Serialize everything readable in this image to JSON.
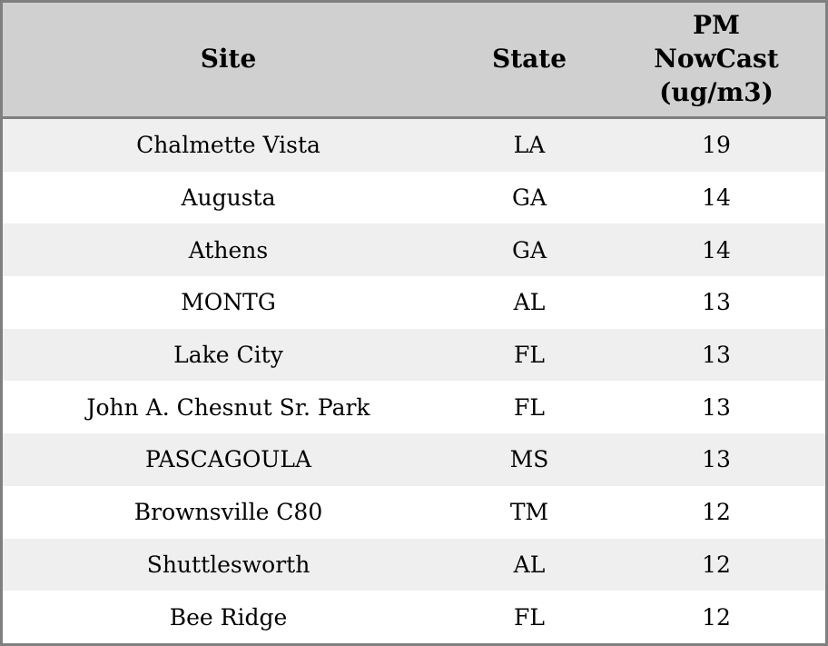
{
  "table": {
    "columns": [
      {
        "key": "site",
        "label": "Site"
      },
      {
        "key": "state",
        "label": "State"
      },
      {
        "key": "pm",
        "label": "PM NowCast (ug/m3)"
      }
    ],
    "rows": [
      {
        "site": "Chalmette Vista",
        "state": "LA",
        "pm": "19"
      },
      {
        "site": "Augusta",
        "state": "GA",
        "pm": "14"
      },
      {
        "site": "Athens",
        "state": "GA",
        "pm": "14"
      },
      {
        "site": "MONTG",
        "state": "AL",
        "pm": "13"
      },
      {
        "site": "Lake City",
        "state": "FL",
        "pm": "13"
      },
      {
        "site": "John A. Chesnut Sr. Park",
        "state": "FL",
        "pm": "13"
      },
      {
        "site": "PASCAGOULA",
        "state": "MS",
        "pm": "13"
      },
      {
        "site": "Brownsville C80",
        "state": "TM",
        "pm": "12"
      },
      {
        "site": "Shuttlesworth",
        "state": "AL",
        "pm": "12"
      },
      {
        "site": "Bee Ridge",
        "state": "FL",
        "pm": "12"
      }
    ]
  },
  "colors": {
    "header_bg": "#d0d0d0",
    "row_stripe": "#efefef",
    "row_plain": "#ffffff",
    "border": "#7f7f7f",
    "text": "#000000"
  }
}
